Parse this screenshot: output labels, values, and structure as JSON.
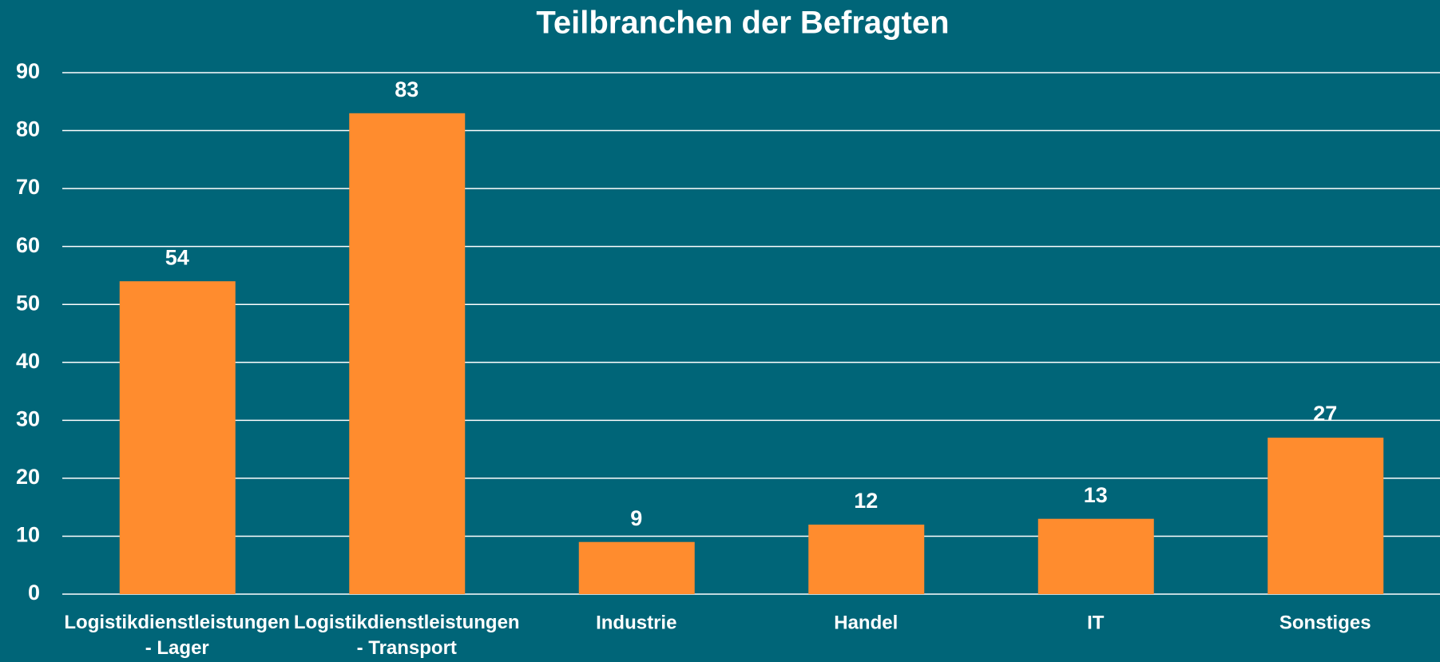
{
  "chart_data": {
    "type": "bar",
    "title": "Teilbranchen der Befragten",
    "categories": [
      "Logistikdienstleistungen\n- Lager",
      "Logistikdienstleistungen\n- Transport",
      "Industrie",
      "Handel",
      "IT",
      "Sonstiges"
    ],
    "values": [
      54,
      83,
      9,
      12,
      13,
      27
    ],
    "color": "#ff8c2e",
    "ylim": [
      0,
      90
    ],
    "yticks": [
      0,
      10,
      20,
      30,
      40,
      50,
      60,
      70,
      80,
      90
    ],
    "grid": true
  }
}
